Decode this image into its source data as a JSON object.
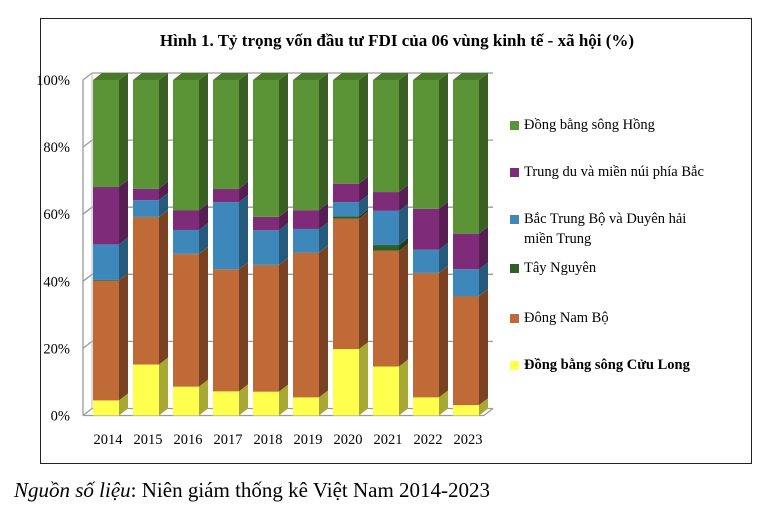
{
  "chart_data": {
    "type": "bar",
    "stacked": true,
    "style": "3d-stacked-100-percent",
    "title": "Hình 1. Tỷ trọng vốn đầu tư FDI của 06 vùng kinh tế - xã hội (%)",
    "xlabel": "",
    "ylabel": "",
    "ylim": [
      0,
      100
    ],
    "yticks": [
      "0%",
      "20%",
      "40%",
      "60%",
      "80%",
      "100%"
    ],
    "grid": true,
    "legend_position": "right",
    "categories": [
      "2014",
      "2015",
      "2016",
      "2017",
      "2018",
      "2019",
      "2020",
      "2021",
      "2022",
      "2023"
    ],
    "series": [
      {
        "name": "Đồng bằng sông Cửu Long",
        "color": "#FFFF4D",
        "side": "#A8A834",
        "values": [
          4.5,
          15.2,
          8.6,
          7.2,
          7.1,
          5.4,
          19.8,
          14.6,
          5.4,
          3.1
        ]
      },
      {
        "name": "Đông Nam Bộ",
        "color": "#C06A38",
        "side": "#7A4123",
        "values": [
          35.7,
          43.9,
          39.5,
          36.3,
          37.7,
          43.1,
          38.9,
          34.5,
          37.0,
          32.4
        ]
      },
      {
        "name": "Tây Nguyên",
        "color": "#2F5F22",
        "side": "#1F3F16",
        "values": [
          0.2,
          0.1,
          0.1,
          0.1,
          0.1,
          0.1,
          0.6,
          1.7,
          0.1,
          0.1
        ]
      },
      {
        "name": "Bắc Trung Bộ và Duyên hải miền Trung",
        "color": "#3E87BA",
        "side": "#265A7D",
        "values": [
          10.6,
          5.0,
          7.1,
          20.0,
          10.3,
          7.0,
          4.3,
          10.2,
          6.9,
          8.0
        ]
      },
      {
        "name": "Trung du và miền núi phía Bắc",
        "color": "#7E2C7A",
        "side": "#561E53",
        "values": [
          17.1,
          3.4,
          5.8,
          3.9,
          4.0,
          5.6,
          5.5,
          5.6,
          12.2,
          10.6
        ]
      },
      {
        "name": "Đồng bằng sông Hồng",
        "color": "#5B9337",
        "side": "#3A5F22",
        "values": [
          31.9,
          32.4,
          38.9,
          32.5,
          40.8,
          38.8,
          30.9,
          33.4,
          38.4,
          45.8
        ]
      }
    ]
  },
  "legend": [
    {
      "label": "Đồng bằng sông Hồng",
      "color": "#5B9337"
    },
    {
      "label": "Trung du và miền núi phía Bắc",
      "color": "#7E2C7A"
    },
    {
      "label": "Bắc Trung Bộ và Duyên hải",
      "label2": "miền Trung",
      "color": "#3E87BA"
    },
    {
      "label": "Tây Nguyên",
      "color": "#2F5F22"
    },
    {
      "label": "Đông Nam Bộ",
      "color": "#C06A38"
    },
    {
      "label": "Đồng bằng sông Cửu Long",
      "color": "#FFFF4D"
    }
  ],
  "source": {
    "label": "Nguồn số liệu",
    "text": ": Niên giám thống kê Việt Nam 2014-2023"
  }
}
